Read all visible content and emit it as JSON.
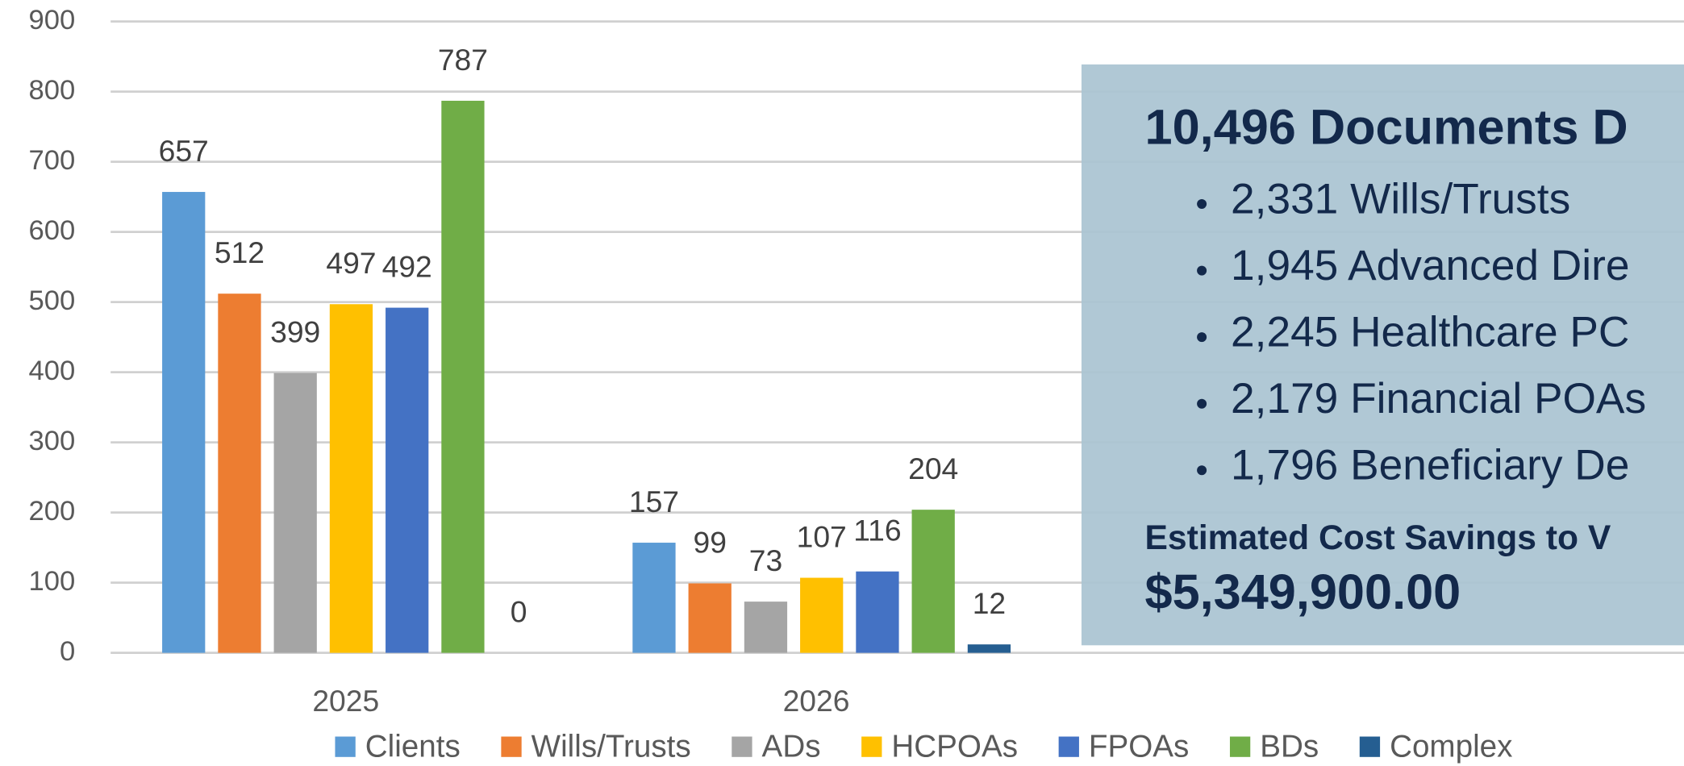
{
  "chart_data": {
    "type": "bar",
    "categories": [
      "2025",
      "2026"
    ],
    "series": [
      {
        "name": "Clients",
        "color": "#5b9bd5",
        "values": [
          657,
          157
        ]
      },
      {
        "name": "Wills/Trusts",
        "color": "#ed7d31",
        "values": [
          512,
          99
        ]
      },
      {
        "name": "ADs",
        "color": "#a5a5a5",
        "values": [
          399,
          73
        ]
      },
      {
        "name": "HCPOAs",
        "color": "#ffc000",
        "values": [
          497,
          107
        ]
      },
      {
        "name": "FPOAs",
        "color": "#4472c4",
        "values": [
          492,
          116
        ]
      },
      {
        "name": "BDs",
        "color": "#70ad47",
        "values": [
          787,
          204
        ]
      },
      {
        "name": "Complex",
        "color": "#255e91",
        "values": [
          0,
          12
        ]
      }
    ],
    "ylim": [
      0,
      900
    ],
    "yticks": [
      0,
      100,
      200,
      300,
      400,
      500,
      600,
      700,
      800,
      900
    ],
    "grid": true,
    "legend": "bottom"
  },
  "callout": {
    "title": "10,496 Documents D",
    "bullets": [
      "2,331 Wills/Trusts",
      "1,945 Advanced Dire",
      "2,245 Healthcare PC",
      "2,179 Financial POAs",
      "1,796 Beneficiary De"
    ],
    "savings_label": "Estimated Cost Savings to V",
    "savings_value": "$5,349,900.00"
  }
}
